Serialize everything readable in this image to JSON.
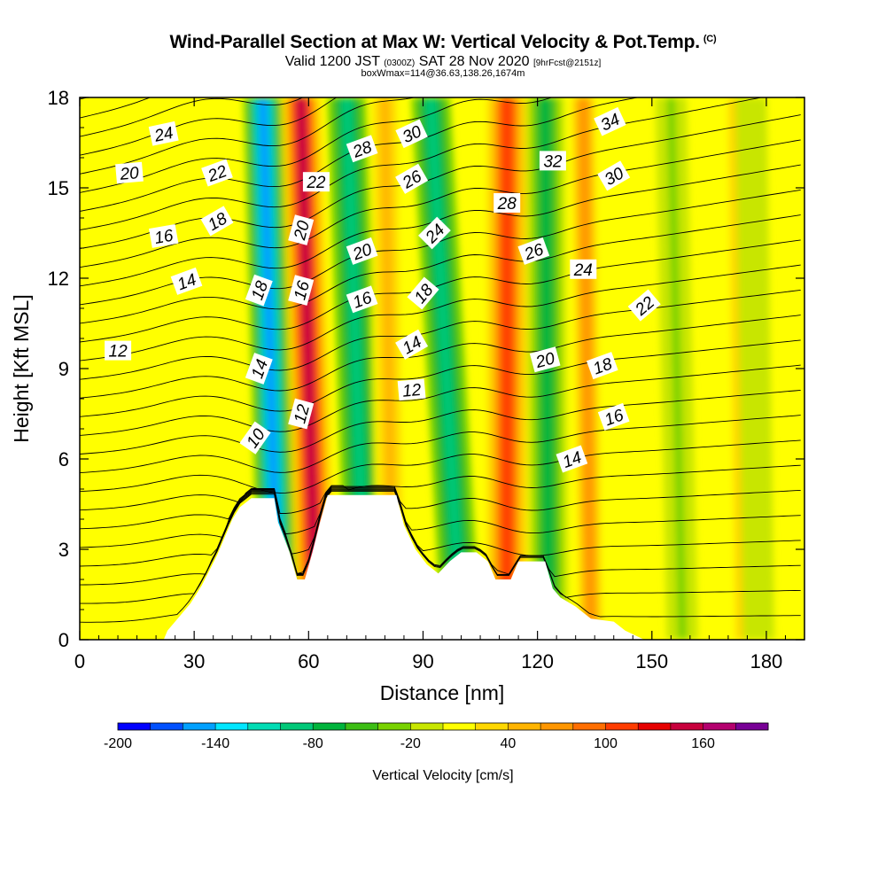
{
  "title": {
    "main": "Wind-Parallel Section at Max W: Vertical Velocity & Pot.Temp.",
    "copyright_mark": "(C)",
    "valid_prefix": "Valid 1200 JST",
    "valid_utc": "(0300Z)",
    "valid_date": "SAT 28 Nov 2020",
    "forecast_info": "[9hrFcst@2151z]",
    "box_info": "boxWmax=114@36.63,138.26,1674m"
  },
  "colors": {
    "background": "#ffffff",
    "terrain": "#ffffff",
    "contour_line": "#000000",
    "contour_label_bg": "#ffffff",
    "colorbar": [
      "#0000ff",
      "#0050ff",
      "#00a0ff",
      "#00e6ff",
      "#00dcb4",
      "#00c878",
      "#00b43c",
      "#3cbe14",
      "#78d200",
      "#c8e600",
      "#ffff00",
      "#ffd700",
      "#ffb400",
      "#ff9600",
      "#ff6e00",
      "#ff3c00",
      "#e60000",
      "#c8003c",
      "#b4006e",
      "#780096"
    ]
  },
  "chart_data": {
    "type": "heatmap",
    "xlabel": "Distance [nm]",
    "ylabel": "Height [Kft MSL]",
    "xlim": [
      0,
      190
    ],
    "ylim": [
      0,
      18
    ],
    "xticks": [
      0,
      30,
      60,
      90,
      120,
      150,
      180
    ],
    "yticks": [
      0,
      3,
      6,
      9,
      12,
      15,
      18
    ],
    "colorbar": {
      "label": "Vertical Velocity [cm/s]",
      "min": -200,
      "max": 200,
      "step": 20,
      "ticks": [
        -200,
        -140,
        -80,
        -20,
        40,
        100,
        160
      ]
    },
    "velocity_features": [
      {
        "name": "downdraft",
        "x_top": 48,
        "x_bottom": 52,
        "value": -150
      },
      {
        "name": "updraft",
        "x_top": 58,
        "x_bottom": 62,
        "value": 140
      },
      {
        "name": "downdraft",
        "x_top": 70,
        "x_bottom": 75,
        "value": -90
      },
      {
        "name": "updraft",
        "x_top": 80,
        "x_bottom": 82,
        "value": 40
      },
      {
        "name": "downdraft",
        "x_top": 92,
        "x_bottom": 100,
        "value": -100
      },
      {
        "name": "updraft",
        "x_top": 112,
        "x_bottom": 112,
        "value": 110
      },
      {
        "name": "downdraft",
        "x_top": 122,
        "x_bottom": 123,
        "value": -80
      },
      {
        "name": "updraft",
        "x_top": 132,
        "x_bottom": 134,
        "value": 60
      },
      {
        "name": "downdraft",
        "x_top": 155,
        "x_bottom": 158,
        "value": -25
      },
      {
        "name": "updraft",
        "x_top": 172,
        "x_bottom": 174,
        "value": 35
      },
      {
        "name": "downdraft",
        "x_top": 176,
        "x_bottom": 178,
        "value": -20
      }
    ],
    "terrain_profile": [
      [
        22,
        0
      ],
      [
        23,
        0.3
      ],
      [
        25,
        0.6
      ],
      [
        29,
        1.2
      ],
      [
        32,
        1.8
      ],
      [
        36,
        2.8
      ],
      [
        38,
        3.4
      ],
      [
        40,
        4.0
      ],
      [
        42,
        4.4
      ],
      [
        45,
        4.7
      ],
      [
        51,
        4.7
      ],
      [
        52,
        3.9
      ],
      [
        55,
        2.9
      ],
      [
        57,
        2.0
      ],
      [
        59,
        2.0
      ],
      [
        61,
        2.9
      ],
      [
        63,
        3.9
      ],
      [
        65,
        4.8
      ],
      [
        83,
        4.8
      ],
      [
        85,
        3.8
      ],
      [
        88,
        3.0
      ],
      [
        91,
        2.5
      ],
      [
        94,
        2.2
      ],
      [
        97,
        2.6
      ],
      [
        100,
        2.9
      ],
      [
        104,
        2.9
      ],
      [
        107,
        2.6
      ],
      [
        109,
        2.0
      ],
      [
        113,
        2.0
      ],
      [
        115,
        2.6
      ],
      [
        122,
        2.6
      ],
      [
        124,
        1.7
      ],
      [
        126,
        1.4
      ],
      [
        130,
        1.1
      ],
      [
        134,
        0.7
      ],
      [
        140,
        0.6
      ],
      [
        143,
        0.3
      ],
      [
        148,
        0
      ]
    ],
    "contour_labels": [
      {
        "text": "24",
        "x": 22,
        "y": 16.8,
        "angle": -12
      },
      {
        "text": "20",
        "x": 13,
        "y": 15.5,
        "angle": -5
      },
      {
        "text": "22",
        "x": 36,
        "y": 15.5,
        "angle": -20
      },
      {
        "text": "18",
        "x": 36,
        "y": 13.9,
        "angle": -30
      },
      {
        "text": "16",
        "x": 22,
        "y": 13.4,
        "angle": -10
      },
      {
        "text": "14",
        "x": 28,
        "y": 11.9,
        "angle": -20
      },
      {
        "text": "12",
        "x": 10,
        "y": 9.6,
        "angle": 0
      },
      {
        "text": "18",
        "x": 47,
        "y": 11.6,
        "angle": -70
      },
      {
        "text": "14",
        "x": 47,
        "y": 9.0,
        "angle": -70
      },
      {
        "text": "10",
        "x": 46,
        "y": 6.7,
        "angle": -55
      },
      {
        "text": "22",
        "x": 62,
        "y": 15.2,
        "angle": 0
      },
      {
        "text": "20",
        "x": 58,
        "y": 13.6,
        "angle": -75
      },
      {
        "text": "16",
        "x": 58,
        "y": 11.6,
        "angle": -75
      },
      {
        "text": "12",
        "x": 58,
        "y": 7.5,
        "angle": -75
      },
      {
        "text": "28",
        "x": 74,
        "y": 16.3,
        "angle": -20
      },
      {
        "text": "20",
        "x": 74,
        "y": 12.9,
        "angle": -20
      },
      {
        "text": "16",
        "x": 74,
        "y": 11.3,
        "angle": -20
      },
      {
        "text": "30",
        "x": 87,
        "y": 16.8,
        "angle": -25
      },
      {
        "text": "26",
        "x": 87,
        "y": 15.3,
        "angle": -30
      },
      {
        "text": "24",
        "x": 93,
        "y": 13.5,
        "angle": -45
      },
      {
        "text": "18",
        "x": 90,
        "y": 11.5,
        "angle": -50
      },
      {
        "text": "14",
        "x": 87,
        "y": 9.8,
        "angle": -30
      },
      {
        "text": "12",
        "x": 87,
        "y": 8.3,
        "angle": -5
      },
      {
        "text": "28",
        "x": 112,
        "y": 14.5,
        "angle": 0
      },
      {
        "text": "32",
        "x": 124,
        "y": 15.9,
        "angle": 0
      },
      {
        "text": "34",
        "x": 139,
        "y": 17.2,
        "angle": -25
      },
      {
        "text": "30",
        "x": 140,
        "y": 15.4,
        "angle": -30
      },
      {
        "text": "26",
        "x": 119,
        "y": 12.9,
        "angle": -20
      },
      {
        "text": "24",
        "x": 132,
        "y": 12.3,
        "angle": 0
      },
      {
        "text": "22",
        "x": 148,
        "y": 11.1,
        "angle": -40
      },
      {
        "text": "20",
        "x": 122,
        "y": 9.3,
        "angle": -15
      },
      {
        "text": "18",
        "x": 137,
        "y": 9.1,
        "angle": -20
      },
      {
        "text": "16",
        "x": 140,
        "y": 7.4,
        "angle": -20
      },
      {
        "text": "14",
        "x": 129,
        "y": 6.0,
        "angle": -20
      }
    ]
  }
}
